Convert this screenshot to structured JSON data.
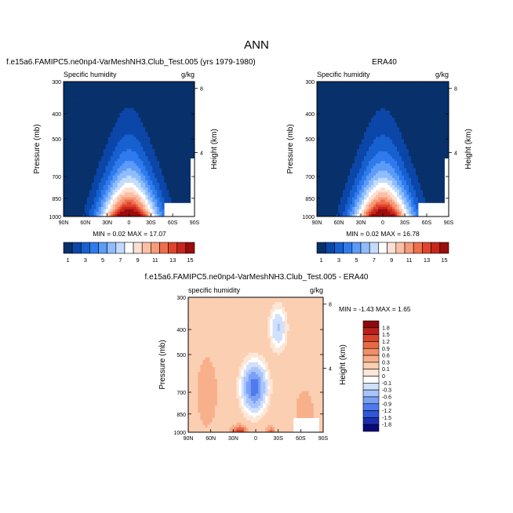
{
  "page_title": "ANN",
  "colors": {
    "abs_palette": [
      "#08306b",
      "#0b46a8",
      "#1760d0",
      "#2f7bee",
      "#5c9bf7",
      "#8fbdfb",
      "#c3dcfd",
      "#ffffff",
      "#fde0d2",
      "#fbbfa5",
      "#f79a78",
      "#ef6e4c",
      "#e0442c",
      "#c8261b",
      "#9b0c0c"
    ],
    "diff_palette": [
      "#0a0a7a",
      "#1a2fb0",
      "#2f55d8",
      "#4f7aee",
      "#7aa0f6",
      "#a8c4fb",
      "#d0e0fd",
      "#ffffff",
      "#fde7d6",
      "#fbcfb2",
      "#f8b08a",
      "#f28d66",
      "#e86a45",
      "#d7442a",
      "#b8201a",
      "#8e0a0a"
    ]
  },
  "chart_data": [
    {
      "type": "heatmap",
      "id": "panel-model",
      "title": "f.e15a6.FAMIPC5.ne0np4-VarMeshNH3.Club_Test.005 (yrs 1979-1980)",
      "left_string": "Specific humidity",
      "right_string": "g/kg",
      "ylabel": "Pressure (mb)",
      "ylabel_right": "Height (km)",
      "x_ticks": [
        "90N",
        "60N",
        "30N",
        "0",
        "30S",
        "60S",
        "90S"
      ],
      "y_ticks": [
        "300",
        "400",
        "500",
        "700",
        "850",
        "1000"
      ],
      "y_ticks_right": [
        "8",
        "4"
      ],
      "stats": "MIN =  0.02  MAX =  17.07",
      "min": 0.02,
      "max": 17.07,
      "peak": 17.07
    },
    {
      "type": "heatmap",
      "id": "panel-obs",
      "title": "ERA40",
      "left_string": "Specific humidity",
      "right_string": "g/kg",
      "ylabel": "Pressure (mb)",
      "ylabel_right": "Height (km)",
      "x_ticks": [
        "90N",
        "60N",
        "30N",
        "0",
        "30S",
        "60S",
        "90S"
      ],
      "y_ticks": [
        "300",
        "400",
        "500",
        "700",
        "850",
        "1000"
      ],
      "y_ticks_right": [
        "8",
        "4"
      ],
      "stats": "MIN =  0.02  MAX =  16.78",
      "min": 0.02,
      "max": 16.78,
      "peak": 16.78
    },
    {
      "type": "heatmap",
      "id": "panel-diff",
      "title": "f.e15a6.FAMIPC5.ne0np4-VarMeshNH3.Club_Test.005 - ERA40",
      "left_string": "specific humidity",
      "right_string": "g/kg",
      "ylabel": "Pressure (mb)",
      "ylabel_right": "Height (km)",
      "x_ticks": [
        "90N",
        "60N",
        "30N",
        "0",
        "30S",
        "60S",
        "90S"
      ],
      "y_ticks": [
        "300",
        "400",
        "500",
        "700",
        "850",
        "1000"
      ],
      "y_ticks_right": [
        "8",
        "4"
      ],
      "stats": "MIN = -1.43  MAX =   1.65",
      "min": -1.43,
      "max": 1.65
    }
  ],
  "colorbar_abs": {
    "labels": [
      "1",
      "3",
      "5",
      "7",
      "9",
      "11",
      "13",
      "15"
    ]
  },
  "colorbar_diff": {
    "labels": [
      "1.8",
      "1.5",
      "1.2",
      "0.9",
      "0.6",
      "0.3",
      "0.1",
      "0",
      "-0.1",
      "-0.3",
      "-0.6",
      "-0.9",
      "-1.2",
      "-1.5",
      "-1.8"
    ]
  }
}
